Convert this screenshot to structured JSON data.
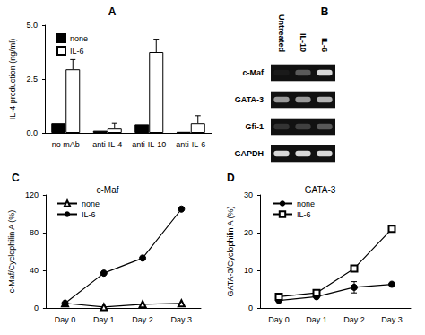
{
  "chart_data": [
    {
      "panel_label": "A",
      "type": "bar",
      "categories": [
        "no mAb",
        "anti-IL-4",
        "anti-IL-10",
        "anti-IL-6"
      ],
      "y_label": "IL-4 production (ng/ml)",
      "ylim": [
        0,
        5
      ],
      "yticks": [
        {
          "value": 0,
          "label": "0.0"
        },
        {
          "value": 2.5,
          "label": "2.5"
        },
        {
          "value": 5,
          "label": "5.0"
        }
      ],
      "grid": false,
      "legend": "upper left",
      "series": [
        {
          "name": "none",
          "color": "#000000",
          "values": [
            0.45,
            0.1,
            0.4,
            0.05
          ],
          "errors": [
            null,
            null,
            null,
            null
          ]
        },
        {
          "name": "IL-6",
          "color": "#ffffff",
          "values": [
            2.95,
            0.2,
            3.75,
            0.45
          ],
          "errors": [
            0.45,
            0.25,
            0.6,
            0.35
          ]
        }
      ]
    },
    {
      "panel_label": "B",
      "type": "gel",
      "lanes": [
        "Untreated",
        "IL-10",
        "IL-6"
      ],
      "rows": [
        "c-Maf",
        "GATA-3",
        "Gfi-1",
        "GAPDH"
      ],
      "intensity": [
        [
          10,
          35,
          85
        ],
        [
          60,
          60,
          70
        ],
        [
          20,
          25,
          35
        ],
        [
          85,
          85,
          85
        ]
      ],
      "zlim": [
        0,
        100
      ]
    },
    {
      "panel_label": "C",
      "type": "line",
      "title": "c-Maf",
      "categories": [
        "Day 0",
        "Day 1",
        "Day 2",
        "Day 3"
      ],
      "y_label": "c-Maf/Cyclophilin A (%)",
      "ylim": [
        0,
        120
      ],
      "yticks": [
        0,
        40,
        80,
        120
      ],
      "grid": false,
      "legend": "upper left",
      "series": [
        {
          "name": "none",
          "color": "#000000",
          "marker": "triangle-open",
          "line_style": "solid",
          "values": [
            5,
            1,
            4,
            5
          ],
          "errors": [
            null,
            null,
            null,
            null
          ]
        },
        {
          "name": "IL-6",
          "color": "#000000",
          "marker": "circle",
          "line_style": "solid",
          "values": [
            5,
            37,
            53,
            105
          ],
          "errors": [
            null,
            null,
            null,
            null
          ]
        }
      ]
    },
    {
      "panel_label": "D",
      "type": "line",
      "title": "GATA-3",
      "categories": [
        "Day 0",
        "Day 1",
        "Day 2",
        "Day 3"
      ],
      "y_label": "GATA-3/Cyclophilin A (%)",
      "ylim": [
        0,
        30
      ],
      "yticks": [
        0,
        10,
        20,
        30
      ],
      "grid": false,
      "legend": "upper left",
      "series": [
        {
          "name": "none",
          "color": "#000000",
          "marker": "circle",
          "line_style": "solid",
          "values": [
            2,
            3,
            5.5,
            6.3
          ],
          "errors": [
            null,
            null,
            1.5,
            null
          ]
        },
        {
          "name": "IL-6",
          "color": "#000000",
          "marker": "square-open",
          "line_style": "solid",
          "values": [
            3,
            4,
            10.5,
            21
          ],
          "errors": [
            null,
            null,
            null,
            null
          ]
        }
      ]
    }
  ]
}
